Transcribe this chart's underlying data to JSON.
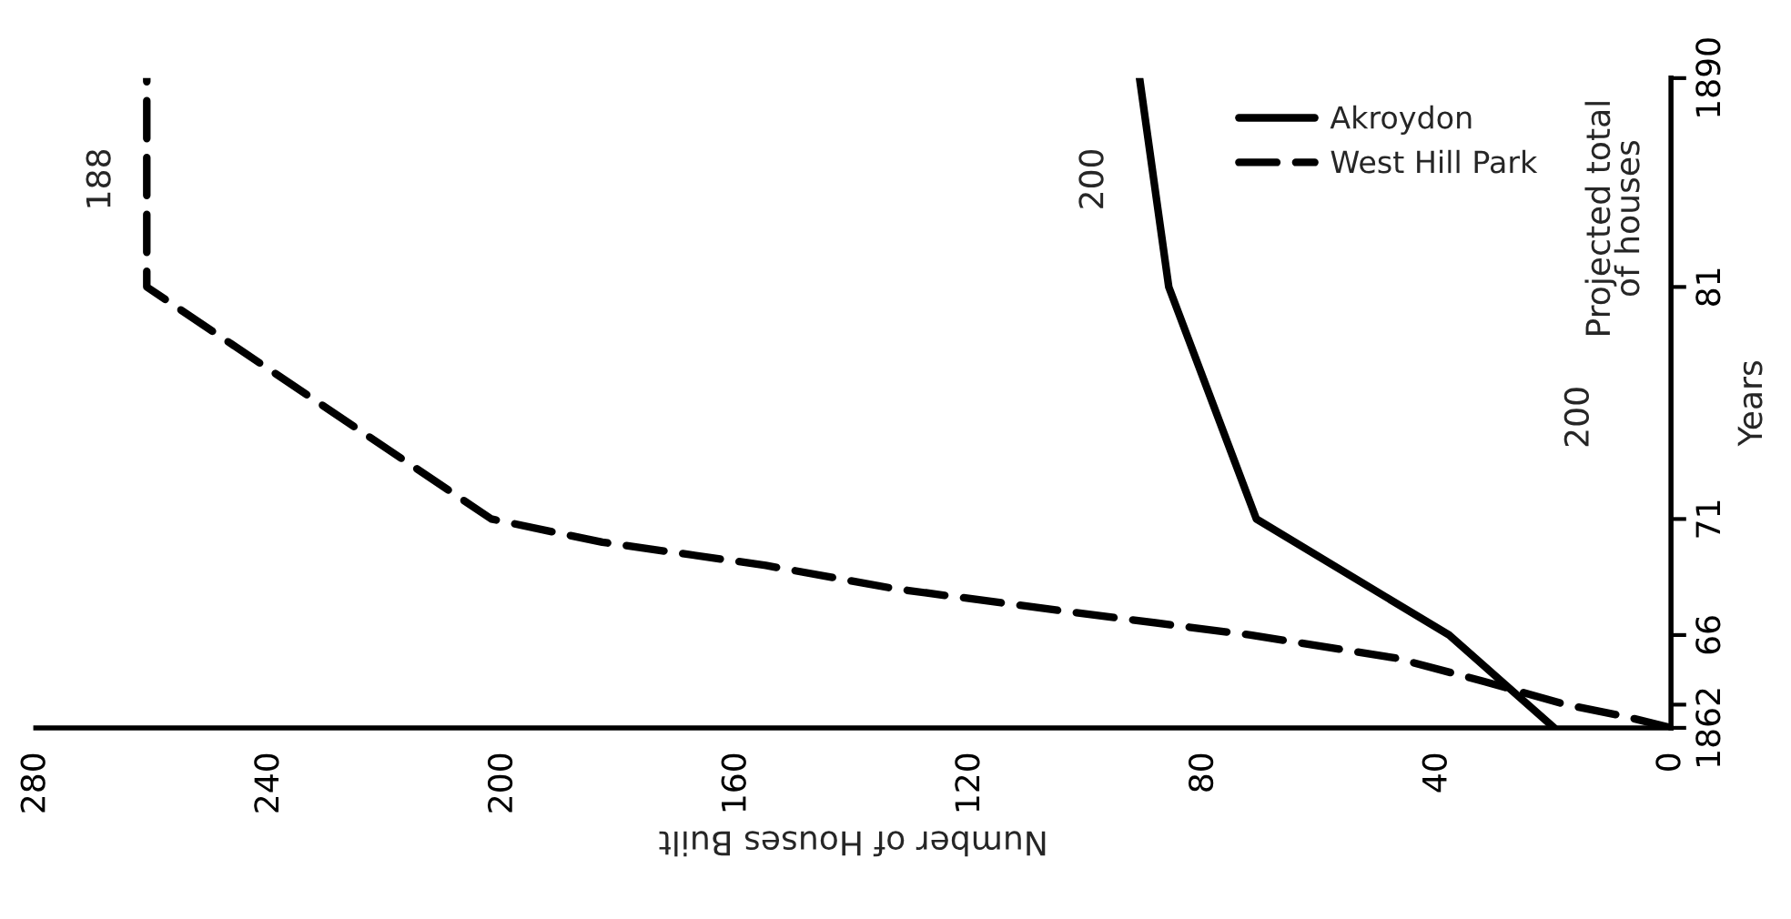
{
  "chart_data": {
    "type": "line",
    "orientation": "horizontal",
    "xlabel": "Number of Houses Built",
    "ylabel": "Years",
    "xlim": [
      280,
      0
    ],
    "xticks": [
      0,
      40,
      80,
      120,
      160,
      200,
      240,
      280
    ],
    "ylim": [
      1862,
      1890
    ],
    "yticks": [
      {
        "value": 1862,
        "label": "1862"
      },
      {
        "value": 1863,
        "label": null
      },
      {
        "value": 1866,
        "label": "66"
      },
      {
        "value": 1871,
        "label": "71"
      },
      {
        "value": 1881,
        "label": "81"
      },
      {
        "value": 1890,
        "label": "1890"
      }
    ],
    "series": [
      {
        "name": "Akroydon",
        "color": "#000000",
        "line_style": "solid",
        "x": [
          1862,
          1866,
          1871,
          1881,
          1890
        ],
        "values": [
          20,
          38,
          71,
          86,
          91
        ]
      },
      {
        "name": "West Hill Park",
        "color": "#000000",
        "line_style": "dashed",
        "x": [
          1862,
          1862.5,
          1863,
          1864,
          1865,
          1866,
          1867,
          1868,
          1869,
          1870,
          1871,
          1881,
          1890
        ],
        "values": [
          0,
          8,
          18,
          32,
          47,
          72,
          103,
          133,
          155,
          183,
          202,
          261,
          261
        ]
      }
    ],
    "annotations": [
      "200",
      "188",
      "200",
      "Projected total\nof houses"
    ],
    "legend": "top right",
    "grid": false,
    "marker": "none"
  }
}
